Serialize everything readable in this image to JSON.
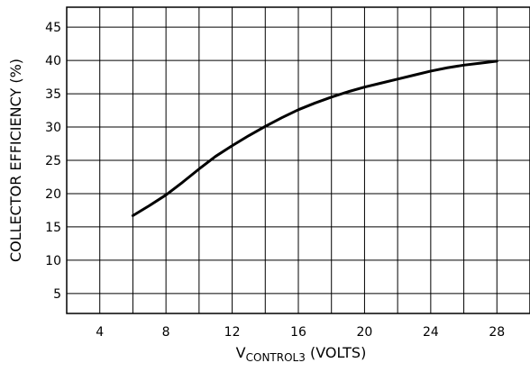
{
  "chart_data": {
    "type": "line",
    "xlabel": {
      "main": "V",
      "subscript": "CONTROL3",
      "suffix": " (VOLTS)"
    },
    "ylabel": "COLLECTOR  EFFICIENCY  (%)",
    "xlim": [
      2,
      30
    ],
    "ylim": [
      2,
      48
    ],
    "x_ticks": [
      4,
      8,
      12,
      16,
      20,
      24,
      28
    ],
    "y_ticks": [
      5,
      10,
      15,
      20,
      25,
      30,
      35,
      40,
      45
    ],
    "x_grid": [
      2,
      4,
      6,
      8,
      10,
      12,
      14,
      16,
      18,
      20,
      22,
      24,
      26,
      28,
      30
    ],
    "y_grid": [
      2,
      5,
      10,
      15,
      20,
      25,
      30,
      35,
      40,
      45,
      48
    ],
    "grid": true,
    "series": [
      {
        "x": [
          6,
          7,
          8,
          9,
          10,
          11,
          12,
          13,
          14,
          15,
          16,
          17,
          18,
          19,
          20,
          21,
          22,
          23,
          24,
          25,
          26,
          27,
          28
        ],
        "y": [
          16.7,
          18.2,
          19.8,
          21.7,
          23.7,
          25.6,
          27.2,
          28.7,
          30.1,
          31.4,
          32.6,
          33.6,
          34.5,
          35.3,
          36.0,
          36.6,
          37.2,
          37.8,
          38.4,
          38.9,
          39.3,
          39.6,
          39.9
        ]
      }
    ]
  }
}
